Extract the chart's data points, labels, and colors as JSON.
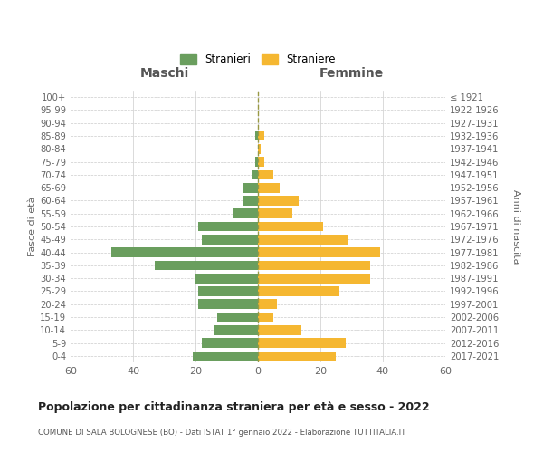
{
  "age_groups": [
    "0-4",
    "5-9",
    "10-14",
    "15-19",
    "20-24",
    "25-29",
    "30-34",
    "35-39",
    "40-44",
    "45-49",
    "50-54",
    "55-59",
    "60-64",
    "65-69",
    "70-74",
    "75-79",
    "80-84",
    "85-89",
    "90-94",
    "95-99",
    "100+"
  ],
  "birth_years": [
    "2017-2021",
    "2012-2016",
    "2007-2011",
    "2002-2006",
    "1997-2001",
    "1992-1996",
    "1987-1991",
    "1982-1986",
    "1977-1981",
    "1972-1976",
    "1967-1971",
    "1962-1966",
    "1957-1961",
    "1952-1956",
    "1947-1951",
    "1942-1946",
    "1937-1941",
    "1932-1936",
    "1927-1931",
    "1922-1926",
    "≤ 1921"
  ],
  "maschi": [
    21,
    18,
    14,
    13,
    19,
    19,
    20,
    33,
    47,
    18,
    19,
    8,
    5,
    5,
    2,
    1,
    0,
    1,
    0,
    0,
    0
  ],
  "femmine": [
    25,
    28,
    14,
    5,
    6,
    26,
    36,
    36,
    39,
    29,
    21,
    11,
    13,
    7,
    5,
    2,
    1,
    2,
    0,
    0,
    0
  ],
  "color_maschi": "#6a9e5e",
  "color_femmine": "#f5b731",
  "background_color": "#ffffff",
  "grid_color": "#cccccc",
  "title": "Popolazione per cittadinanza straniera per età e sesso - 2022",
  "subtitle": "COMUNE DI SALA BOLOGNESE (BO) - Dati ISTAT 1° gennaio 2022 - Elaborazione TUTTITALIA.IT",
  "xlabel_left": "Maschi",
  "xlabel_right": "Femmine",
  "ylabel_left": "Fasce di età",
  "ylabel_right": "Anni di nascita",
  "legend_stranieri": "Stranieri",
  "legend_straniere": "Straniere",
  "xlim": 60
}
